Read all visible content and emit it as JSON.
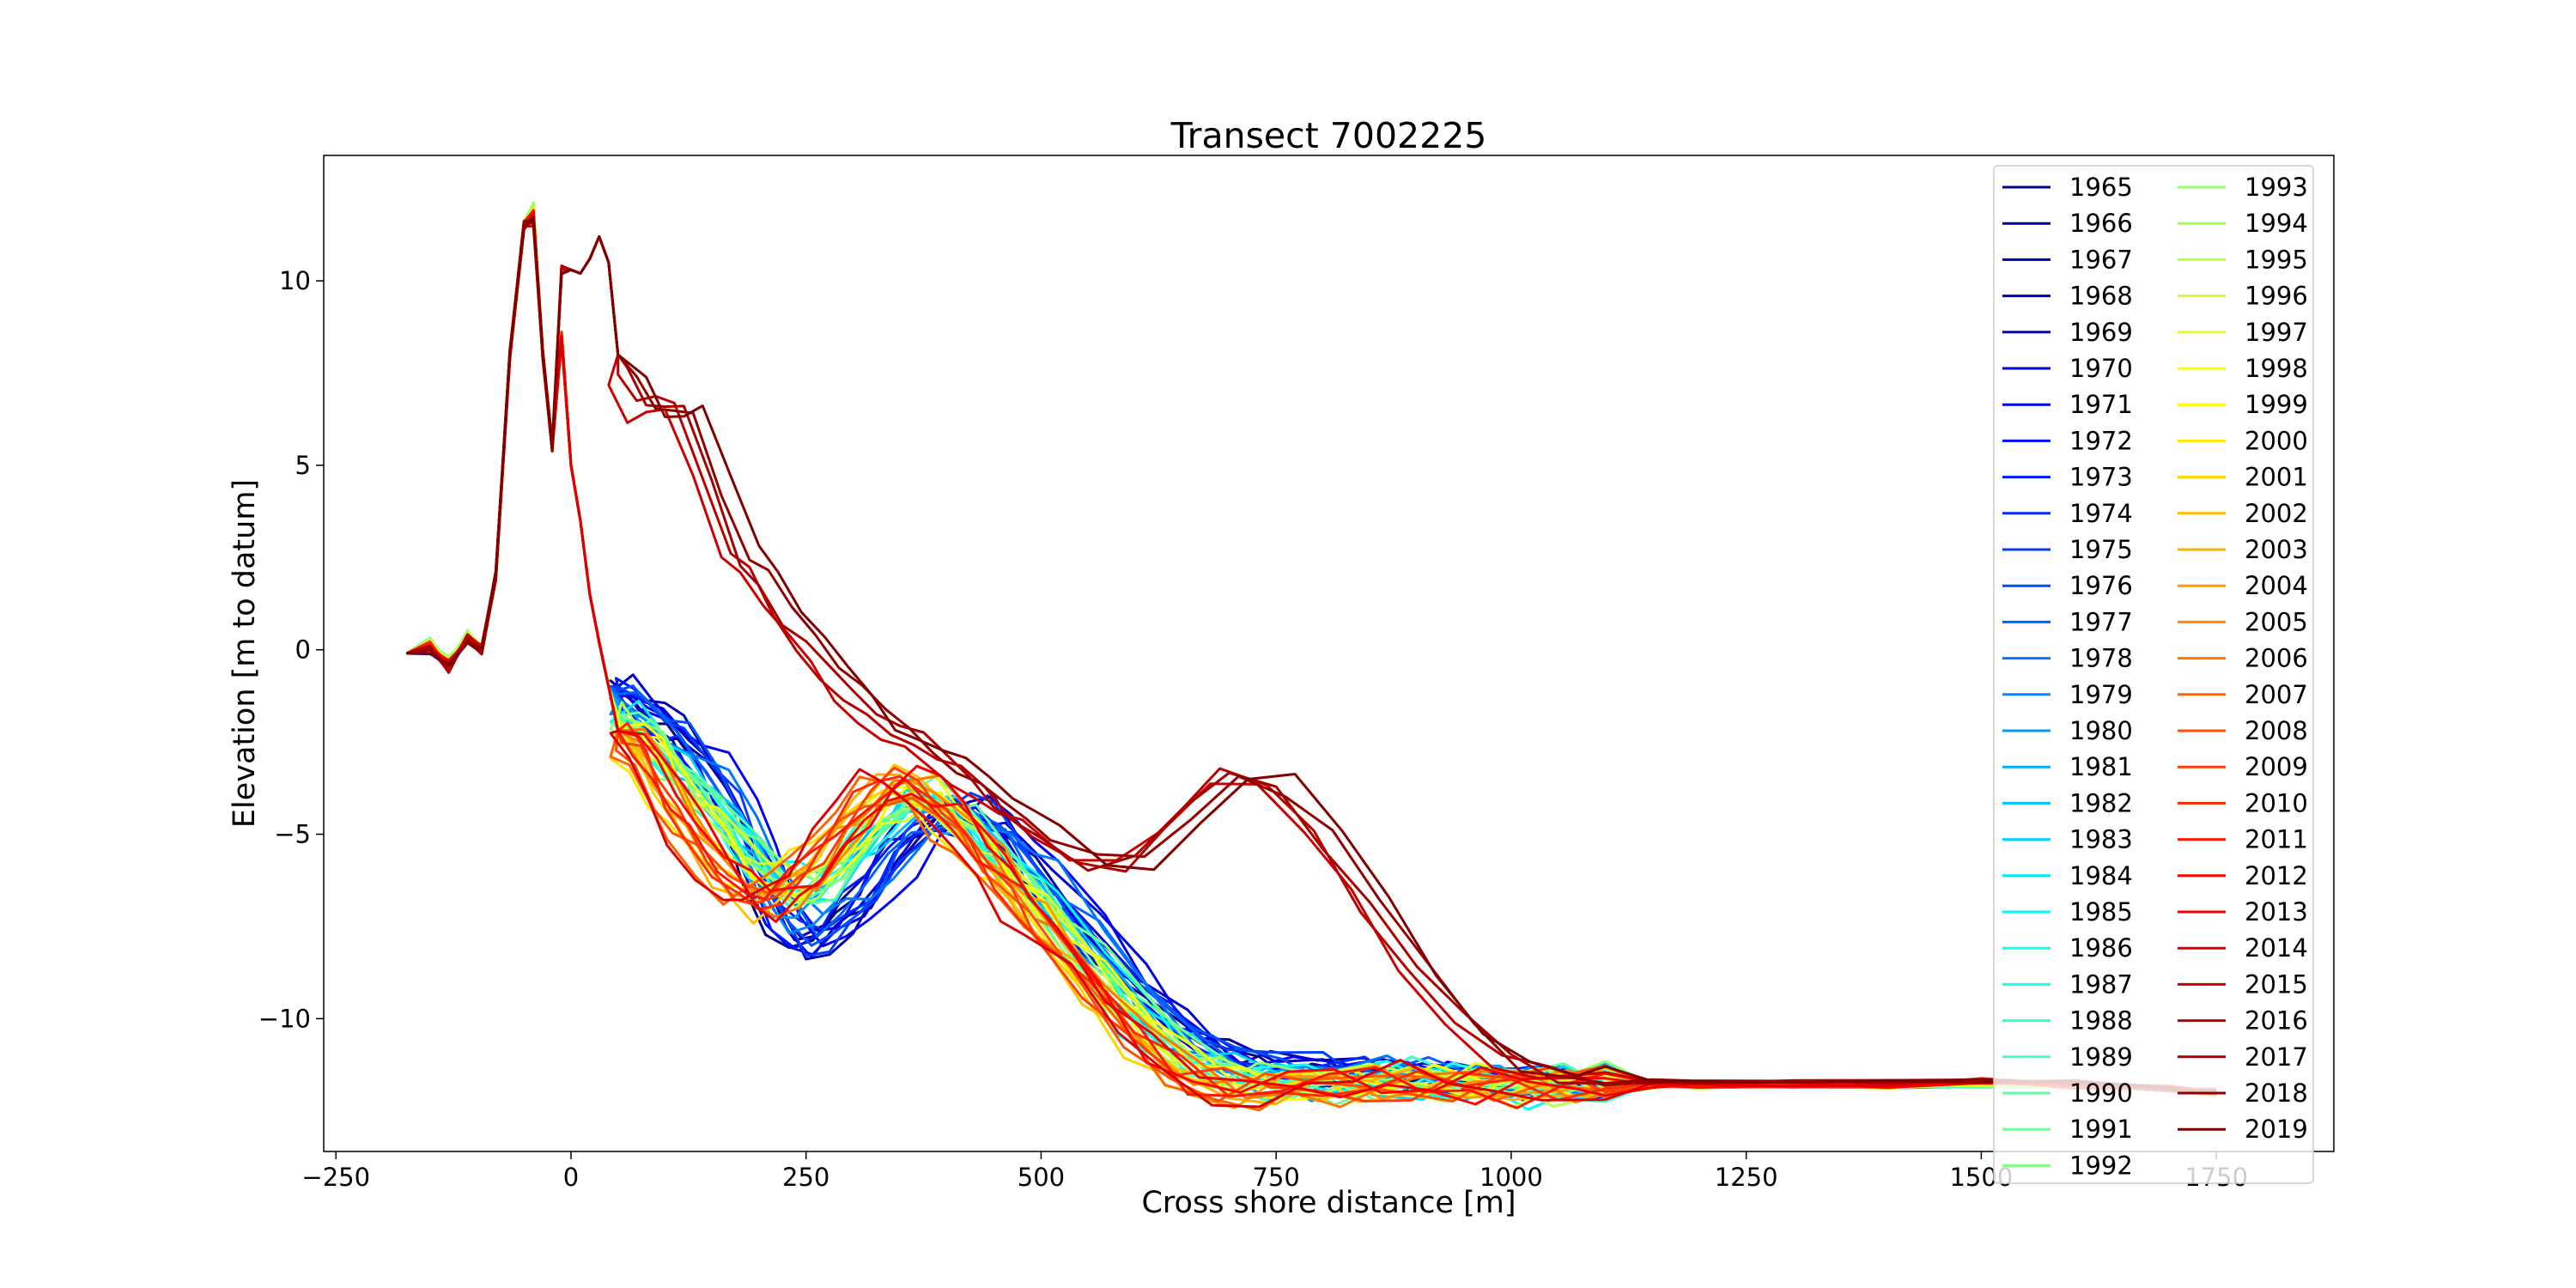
{
  "chart_data": {
    "type": "line",
    "title": "Transect 7002225",
    "xlabel": "Cross shore distance [m]",
    "ylabel": "Elevation [m to datum]",
    "xlim": [
      -263,
      1875
    ],
    "ylim": [
      -13.6,
      13.4
    ],
    "xticks": [
      -250,
      0,
      250,
      500,
      750,
      1000,
      1250,
      1500,
      1750
    ],
    "xtick_labels": [
      "−250",
      "0",
      "250",
      "500",
      "750",
      "1000",
      "1250",
      "1500",
      "1750"
    ],
    "yticks": [
      10,
      5,
      0,
      -5,
      -10
    ],
    "ytick_labels": [
      "10",
      "5",
      "0",
      "−5",
      "−10"
    ],
    "grid": false,
    "colormap": "jet",
    "legend": {
      "placement": "upper-right",
      "columns": 2
    },
    "series_names": [
      "1965",
      "1966",
      "1967",
      "1968",
      "1969",
      "1970",
      "1971",
      "1972",
      "1973",
      "1974",
      "1975",
      "1976",
      "1977",
      "1978",
      "1979",
      "1980",
      "1981",
      "1982",
      "1983",
      "1984",
      "1985",
      "1986",
      "1987",
      "1988",
      "1989",
      "1990",
      "1991",
      "1992",
      "1993",
      "1994",
      "1995",
      "1996",
      "1997",
      "1998",
      "1999",
      "2000",
      "2001",
      "2002",
      "2003",
      "2004",
      "2005",
      "2006",
      "2007",
      "2008",
      "2009",
      "2010",
      "2011",
      "2012",
      "2013",
      "2014",
      "2015",
      "2016",
      "2017",
      "2018",
      "2019"
    ],
    "profiles": {
      "x": [
        -175,
        -150,
        -130,
        -110,
        -95,
        -80,
        -65,
        -50,
        -40,
        -30,
        -20,
        -10,
        0,
        10,
        20,
        30,
        40,
        50,
        60,
        80,
        100,
        120,
        150,
        180,
        200,
        225,
        250,
        275,
        300,
        325,
        350,
        375,
        400,
        425,
        450,
        475,
        500,
        550,
        600,
        650,
        700,
        750,
        800,
        850,
        900,
        950,
        1000,
        1050,
        1100,
        1150,
        1200,
        1300,
        1400,
        1500,
        1600,
        1700,
        1750
      ],
      "early": [
        -0.1,
        0,
        -0.5,
        0.3,
        0,
        2.0,
        8.0,
        11.5,
        11.8,
        8.0,
        5.5,
        8.5,
        5.0,
        3.5,
        1.5,
        0.2,
        -1.0,
        -1.0,
        -1.2,
        -1.5,
        -2.0,
        -2.3,
        -3.2,
        -4.5,
        -5.8,
        -7.2,
        -8.0,
        -7.8,
        -7.2,
        -6.5,
        -5.5,
        -4.8,
        -4.5,
        -4.3,
        -4.6,
        -5.3,
        -6.1,
        -7.5,
        -9.0,
        -10.2,
        -11.0,
        -11.3,
        -11.4,
        -11.5,
        -11.6,
        -11.6,
        -11.7,
        -11.7,
        -11.8,
        -11.8,
        -11.8,
        -11.8,
        -11.8,
        -11.8,
        -11.8,
        -11.9,
        -12.0
      ],
      "mid": [
        -0.1,
        0.2,
        -0.3,
        0.4,
        0,
        2.0,
        8.0,
        11.5,
        12.0,
        8.0,
        5.5,
        8.5,
        5.0,
        3.5,
        1.5,
        0.2,
        -1.0,
        -1.8,
        -2.0,
        -2.3,
        -3.0,
        -3.5,
        -4.2,
        -5.0,
        -5.7,
        -6.3,
        -6.6,
        -6.2,
        -5.5,
        -4.8,
        -4.2,
        -4.0,
        -4.3,
        -4.8,
        -5.5,
        -6.2,
        -6.8,
        -8.3,
        -9.8,
        -11.0,
        -11.6,
        -11.7,
        -11.7,
        -11.7,
        -11.7,
        -11.7,
        -11.8,
        -11.8,
        -11.8,
        -11.8,
        -11.8,
        -11.8,
        -11.8,
        -11.8,
        -11.8,
        -11.9,
        -12.0
      ],
      "late": [
        -0.1,
        0.1,
        -0.4,
        0.3,
        0,
        2.0,
        8.0,
        11.5,
        11.8,
        8.0,
        5.5,
        8.5,
        5.0,
        3.5,
        1.5,
        0.2,
        -1.0,
        -2.2,
        -2.5,
        -3.0,
        -4.0,
        -4.8,
        -5.8,
        -6.6,
        -6.8,
        -6.5,
        -6.0,
        -5.2,
        -4.5,
        -3.8,
        -3.6,
        -3.9,
        -4.5,
        -5.2,
        -6.0,
        -6.8,
        -7.5,
        -9.0,
        -10.5,
        -11.6,
        -12.0,
        -11.9,
        -11.8,
        -11.8,
        -11.8,
        -11.8,
        -11.8,
        -11.8,
        -11.8,
        -11.8,
        -11.8,
        -11.8,
        -11.8,
        -11.7,
        -11.8,
        -11.9,
        -12.0
      ],
      "recent": [
        -0.1,
        0,
        -0.5,
        0.3,
        0,
        2.0,
        8.0,
        11.5,
        11.6,
        8.0,
        5.5,
        10.3,
        10.3,
        10.2,
        10.6,
        11.2,
        10.5,
        8.0,
        7.5,
        6.5,
        6.6,
        6.6,
        4.5,
        2.5,
        2.0,
        1.0,
        0.2,
        -0.5,
        -1.2,
        -1.8,
        -2.2,
        -2.6,
        -3.0,
        -3.5,
        -4.0,
        -4.6,
        -5.0,
        -5.8,
        -5.8,
        -4.6,
        -3.4,
        -3.7,
        -5.0,
        -6.8,
        -8.6,
        -10.1,
        -11.2,
        -11.6,
        -11.7,
        -11.7,
        -11.7,
        -11.7,
        -11.7,
        -11.7,
        -11.7,
        -11.9,
        -12.0
      ]
    }
  }
}
